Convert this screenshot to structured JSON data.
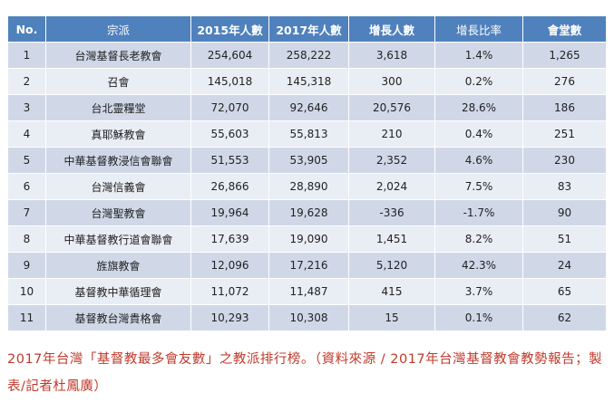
{
  "table": {
    "headers": [
      "No.",
      "宗派",
      "2015年人數",
      "2017年人數",
      "增長人數",
      "增長比率",
      "會堂數"
    ],
    "rows": [
      [
        "1",
        "台灣基督長老教會",
        "254,604",
        "258,222",
        "3,618",
        "1.4%",
        "1,265"
      ],
      [
        "2",
        "召會",
        "145,018",
        "145,318",
        "300",
        "0.2%",
        "276"
      ],
      [
        "3",
        "台北靈糧堂",
        "72,070",
        "92,646",
        "20,576",
        "28.6%",
        "186"
      ],
      [
        "4",
        "真耶穌教會",
        "55,603",
        "55,813",
        "210",
        "0.4%",
        "251"
      ],
      [
        "5",
        "中華基督教浸信會聯會",
        "51,553",
        "53,905",
        "2,352",
        "4.6%",
        "230"
      ],
      [
        "6",
        "台灣信義會",
        "26,866",
        "28,890",
        "2,024",
        "7.5%",
        "83"
      ],
      [
        "7",
        "台灣聖教會",
        "19,964",
        "19,628",
        "-336",
        "-1.7%",
        "90"
      ],
      [
        "8",
        "中華基督教行道會聯會",
        "17,639",
        "19,090",
        "1,451",
        "8.2%",
        "51"
      ],
      [
        "9",
        "旌旗教會",
        "12,096",
        "17,216",
        "5,120",
        "42.3%",
        "24"
      ],
      [
        "10",
        "基督教中華循理會",
        "11,072",
        "11,487",
        "415",
        "3.7%",
        "65"
      ],
      [
        "11",
        "基督教台灣貴格會",
        "10,293",
        "10,308",
        "15",
        "0.1%",
        "62"
      ]
    ]
  },
  "caption": {
    "text": "2017年台灣「基督教最多會友數」之教派排行榜。（資料來源 / 2017年台灣基督教會教勢報告；製表/記者杜鳳廣）",
    "color": "#c0392b"
  },
  "colors": {
    "header_bg": "#4f81bd",
    "row_odd": "#d0d8e8",
    "row_even": "#e9edf4"
  }
}
